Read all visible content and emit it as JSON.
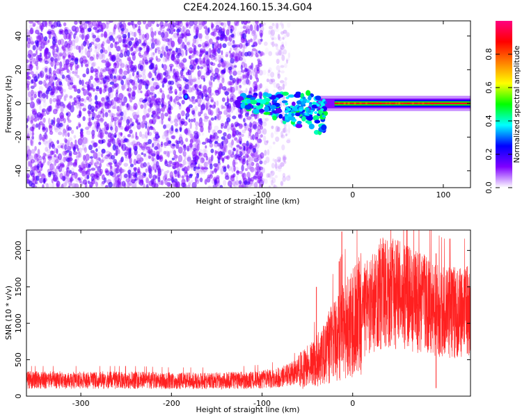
{
  "figure": {
    "title": "C2E4.2024.160.15.34.G04"
  },
  "chart_data": [
    {
      "type": "heatmap",
      "xlabel": "Height of straight line (km)",
      "ylabel": "Frequency (Hz)",
      "xlim": [
        -360,
        130
      ],
      "ylim": [
        -50,
        49
      ],
      "xticks": [
        -300,
        -200,
        -100,
        0,
        100
      ],
      "yticks": [
        -40,
        -20,
        0,
        20,
        40
      ],
      "colorbar": {
        "label": "Normalized spectral amplitude",
        "range": [
          0,
          1
        ],
        "ticks": [
          "0.0",
          "0.2",
          "0.4",
          "0.6",
          "0.8"
        ],
        "colormap": [
          "#ffffff",
          "#7f00ff",
          "#0000ff",
          "#00ffff",
          "#00ff00",
          "#ffff00",
          "#ff8000",
          "#ff0000",
          "#ff0080"
        ]
      },
      "features": [
        {
          "region": "noise",
          "x_range": [
            -360,
            -100
          ],
          "y_range": [
            -50,
            49
          ],
          "amplitude": 0.1
        },
        {
          "region": "sparse-noise",
          "x_range": [
            -100,
            -70
          ],
          "y_range": [
            -50,
            49
          ],
          "amplitude": 0.05
        },
        {
          "region": "burst",
          "x_range": [
            -130,
            -30
          ],
          "y_range": [
            -30,
            14
          ],
          "amplitude": 0.35
        },
        {
          "region": "carrier",
          "x_range": [
            -20,
            130
          ],
          "y_center": 0,
          "amplitude": 0.9
        }
      ]
    },
    {
      "type": "line",
      "xlabel": "Height of straight line (km)",
      "ylabel": "SNR (10 * v/v)",
      "xlim": [
        -360,
        130
      ],
      "ylim": [
        0,
        2280
      ],
      "xticks": [
        -300,
        -200,
        -100,
        0
      ],
      "yticks": [
        0,
        500,
        1000,
        1500,
        2000
      ],
      "series": [
        {
          "color": "#ff2020",
          "x": [
            -360,
            -320,
            -280,
            -240,
            -200,
            -160,
            -120,
            -100,
            -80,
            -60,
            -50,
            -40,
            -30,
            -20,
            -10,
            0,
            10,
            20,
            30,
            40,
            50,
            60,
            70,
            80,
            90,
            100,
            110,
            120,
            130
          ],
          "y": [
            220,
            220,
            220,
            220,
            210,
            210,
            220,
            230,
            260,
            330,
            400,
            480,
            600,
            800,
            900,
            1000,
            1150,
            1250,
            1400,
            1430,
            1380,
            1350,
            1300,
            1250,
            1200,
            1150,
            1150,
            1150,
            1150
          ],
          "spikes": [
            {
              "x": -12,
              "y": 2260
            },
            {
              "x": -15,
              "y": 1850
            },
            {
              "x": -40,
              "y": 1500
            },
            {
              "x": 92,
              "y": 1960
            },
            {
              "x": 92,
              "y": 110
            }
          ]
        }
      ]
    }
  ]
}
